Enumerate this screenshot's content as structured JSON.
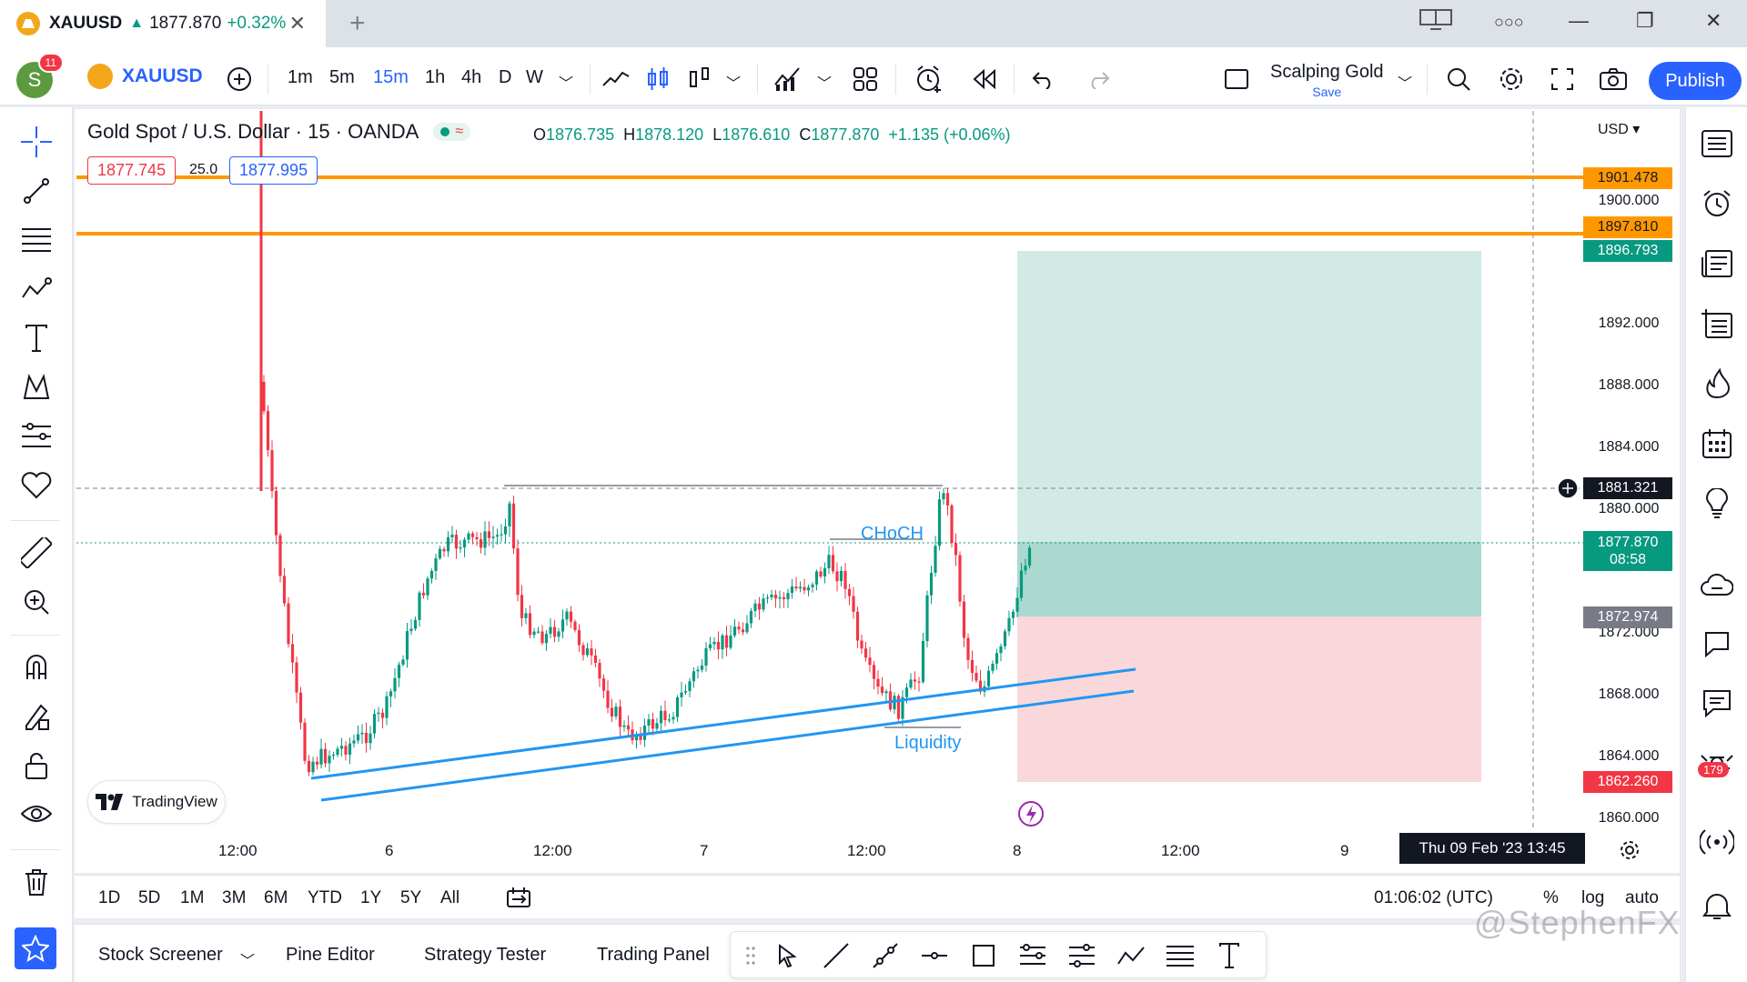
{
  "window": {
    "tab_symbol": "XAUUSD",
    "tab_price": "1877.870",
    "tab_change": "+0.32%"
  },
  "toolbar": {
    "notification_count": "11",
    "avatar_letter": "S",
    "symbol": "XAUUSD",
    "intervals": [
      "1m",
      "5m",
      "15m",
      "1h",
      "4h",
      "D",
      "W"
    ],
    "active_interval": "15m",
    "layout_name": "Scalping Gold",
    "layout_save": "Save",
    "publish_label": "Publish"
  },
  "legend": {
    "title": "Gold Spot / U.S. Dollar · 15 · OANDA",
    "open_label": "O",
    "open": "1876.735",
    "high_label": "H",
    "high": "1878.120",
    "low_label": "L",
    "low": "1876.610",
    "close_label": "C",
    "close": "1877.870",
    "change": "+1.135 (+0.06%)",
    "bid": "1877.745",
    "spread": "25.0",
    "ask": "1877.995"
  },
  "price_axis": {
    "currency": "USD",
    "ticks": [
      "1900.000",
      "1892.000",
      "1888.000",
      "1884.000",
      "1880.000",
      "1872.000",
      "1868.000",
      "1864.000",
      "1860.000"
    ],
    "tags": {
      "resistance_1": "1901.478",
      "resistance_2": "1897.810",
      "target": "1896.793",
      "crosshair": "1881.321",
      "last_price": "1877.870",
      "countdown": "08:58",
      "entry": "1872.974",
      "stop": "1862.260"
    }
  },
  "time_axis": {
    "ticks": [
      "12:00",
      "6",
      "12:00",
      "7",
      "12:00",
      "8",
      "12:00",
      "9"
    ],
    "crosshair_time": "Thu 09 Feb '23   13:45"
  },
  "annotations": {
    "choch": "CHoCH",
    "liquidity": "Liquidity"
  },
  "branding": {
    "logo_text": "TradingView"
  },
  "range_bar": {
    "ranges": [
      "1D",
      "5D",
      "1M",
      "3M",
      "6M",
      "YTD",
      "1Y",
      "5Y",
      "All"
    ],
    "clock": "01:06:02 (UTC)",
    "percent": "%",
    "log": "log",
    "auto": "auto"
  },
  "bottom_bar": {
    "tabs": [
      "Stock Screener",
      "Pine Editor",
      "Strategy Tester",
      "Trading Panel"
    ]
  },
  "widgets": {
    "ideas_badge": "179"
  },
  "watermark": "@StephenFX",
  "colors": {
    "accent": "#2962ff",
    "up": "#089981",
    "down": "#f23645",
    "resistance": "#ff9800",
    "trendline": "#2196f3",
    "target_zone": "#cfe9e4",
    "stop_zone": "#f9d7da"
  }
}
